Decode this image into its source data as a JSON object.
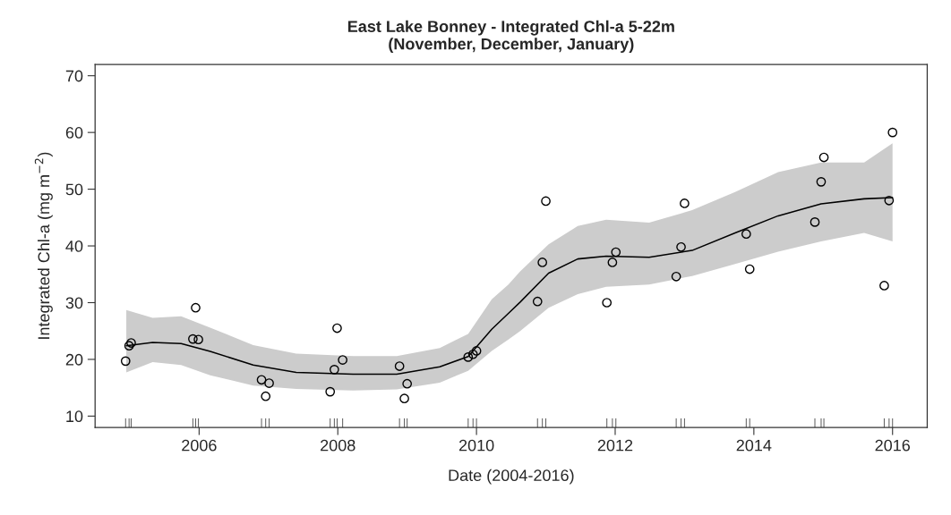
{
  "chart_data": {
    "type": "scatter",
    "title": "East Lake Bonney - Integrated Chl-a 5-22m\n(November, December, January)",
    "xlabel": "Date (2004-2016)",
    "ylabel": "Integrated Chl-a (mg m$^{−2}$)",
    "xlim": [
      2004.5,
      2016.5
    ],
    "ylim": [
      8,
      72
    ],
    "xticks": [
      2006,
      2008,
      2010,
      2012,
      2014,
      2016
    ],
    "yticks": [
      10,
      20,
      30,
      40,
      50,
      60,
      70
    ],
    "grid": false,
    "legend": false,
    "series": [
      {
        "marker": "circle",
        "color": "#000000",
        "x": [
          2004.94,
          2004.99,
          2005.02,
          2005.91,
          2005.95,
          2005.99,
          2006.9,
          2006.96,
          2007.01,
          2007.89,
          2007.95,
          2007.99,
          2008.07,
          2008.89,
          2008.96,
          2009.0,
          2009.88,
          2009.95,
          2010.0,
          2010.88,
          2010.95,
          2011.0,
          2011.88,
          2011.96,
          2012.01,
          2012.88,
          2012.95,
          2013.0,
          2013.89,
          2013.94,
          2014.88,
          2014.97,
          2015.01,
          2015.88,
          2015.95,
          2016.0
        ],
        "values": [
          19.7,
          22.4,
          22.9,
          23.6,
          29.1,
          23.5,
          16.4,
          13.5,
          15.8,
          14.3,
          18.2,
          25.5,
          19.9,
          18.8,
          13.1,
          15.7,
          20.4,
          20.9,
          21.5,
          30.2,
          37.1,
          47.9,
          30.0,
          37.1,
          38.9,
          34.6,
          39.8,
          47.5,
          42.1,
          35.9,
          44.2,
          51.3,
          55.6,
          33.0,
          48.0,
          60.0
        ]
      },
      {
        "type": "line",
        "marker": "none",
        "line_style": "solid",
        "color": "#000000",
        "x": [
          2004.95,
          2005.33,
          2005.74,
          2006.16,
          2006.78,
          2007.4,
          2008.22,
          2008.85,
          2009.47,
          2009.88,
          2010.22,
          2010.46,
          2010.63,
          2011.04,
          2011.46,
          2011.87,
          2012.49,
          2013.11,
          2013.73,
          2014.35,
          2014.97,
          2015.59,
          2016.0
        ],
        "values": [
          22.4,
          23.0,
          22.8,
          21.4,
          19.0,
          17.7,
          17.4,
          17.4,
          18.7,
          20.5,
          25.3,
          28.1,
          30.1,
          35.2,
          37.7,
          38.2,
          38.0,
          39.2,
          42.3,
          45.3,
          47.4,
          48.3,
          48.5
        ],
        "lower": [
          17.7,
          19.5,
          19.0,
          17.2,
          15.4,
          14.8,
          14.5,
          14.7,
          15.9,
          18.0,
          21.5,
          23.5,
          25.0,
          29.1,
          31.5,
          32.8,
          33.2,
          34.7,
          36.8,
          39.0,
          40.8,
          42.3,
          40.8
        ],
        "upper": [
          28.7,
          27.3,
          27.6,
          25.6,
          22.5,
          21.0,
          20.6,
          20.6,
          22.0,
          24.5,
          30.6,
          33.2,
          35.5,
          40.3,
          43.5,
          44.6,
          44.1,
          46.3,
          49.5,
          53.0,
          54.7,
          54.7,
          58.1
        ]
      }
    ]
  }
}
